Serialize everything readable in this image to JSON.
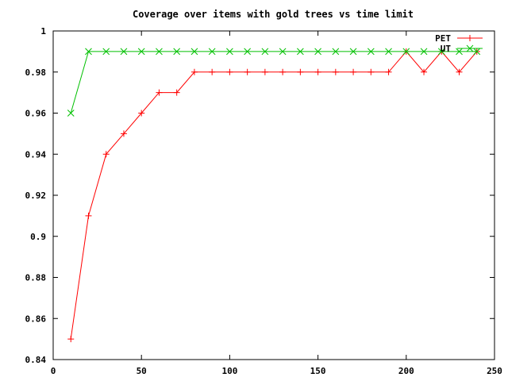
{
  "chart_data": {
    "type": "line",
    "title": "Coverage over items with gold trees vs time limit",
    "xlabel": "",
    "ylabel": "",
    "xlim": [
      0,
      250
    ],
    "ylim": [
      0.84,
      1.0
    ],
    "xticks": [
      "0",
      "50",
      "100",
      "150",
      "200",
      "250"
    ],
    "yticks": [
      "0.84",
      "0.86",
      "0.88",
      "0.9",
      "0.92",
      "0.94",
      "0.96",
      "0.98",
      "1"
    ],
    "grid": false,
    "legend": "top-right",
    "x": [
      10,
      20,
      30,
      40,
      50,
      60,
      70,
      80,
      90,
      100,
      110,
      120,
      130,
      140,
      150,
      160,
      170,
      180,
      190,
      200,
      210,
      220,
      230,
      240
    ],
    "series": [
      {
        "name": "PET",
        "color": "#ff0000",
        "marker": "plus",
        "values": [
          0.85,
          0.91,
          0.94,
          0.95,
          0.96,
          0.97,
          0.97,
          0.98,
          0.98,
          0.98,
          0.98,
          0.98,
          0.98,
          0.98,
          0.98,
          0.98,
          0.98,
          0.98,
          0.98,
          0.99,
          0.98,
          0.99,
          0.98,
          0.99
        ]
      },
      {
        "name": "UT",
        "color": "#00c000",
        "marker": "cross",
        "values": [
          0.96,
          0.99,
          0.99,
          0.99,
          0.99,
          0.99,
          0.99,
          0.99,
          0.99,
          0.99,
          0.99,
          0.99,
          0.99,
          0.99,
          0.99,
          0.99,
          0.99,
          0.99,
          0.99,
          0.99,
          0.99,
          0.99,
          0.99,
          0.99
        ]
      }
    ]
  }
}
